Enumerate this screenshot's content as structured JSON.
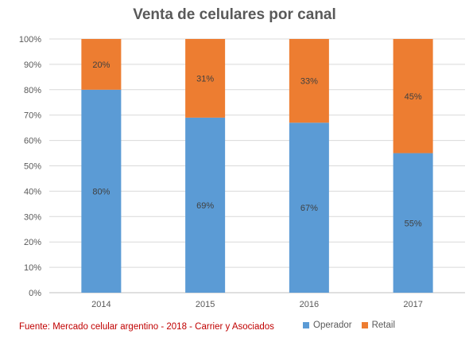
{
  "chart_data": {
    "type": "bar",
    "stacked": true,
    "title": "Venta de celulares por canal",
    "categories": [
      "2014",
      "2015",
      "2016",
      "2017"
    ],
    "series": [
      {
        "name": "Operador",
        "values": [
          80,
          69,
          67,
          55
        ],
        "labels": [
          "80%",
          "69%",
          "67%",
          "55%"
        ],
        "color": "#5b9bd5"
      },
      {
        "name": "Retail",
        "values": [
          20,
          31,
          33,
          45
        ],
        "labels": [
          "20%",
          "31%",
          "33%",
          "45%"
        ],
        "color": "#ed7d31"
      }
    ],
    "y_ticks": [
      "0%",
      "10%",
      "20%",
      "30%",
      "40%",
      "50%",
      "60%",
      "70%",
      "80%",
      "90%",
      "100%"
    ],
    "ylim": [
      0,
      100
    ],
    "grid": true,
    "legend_position": "bottom-right"
  },
  "source": "Fuente: Mercado celular argentino - 2018 - Carrier y Asociados"
}
